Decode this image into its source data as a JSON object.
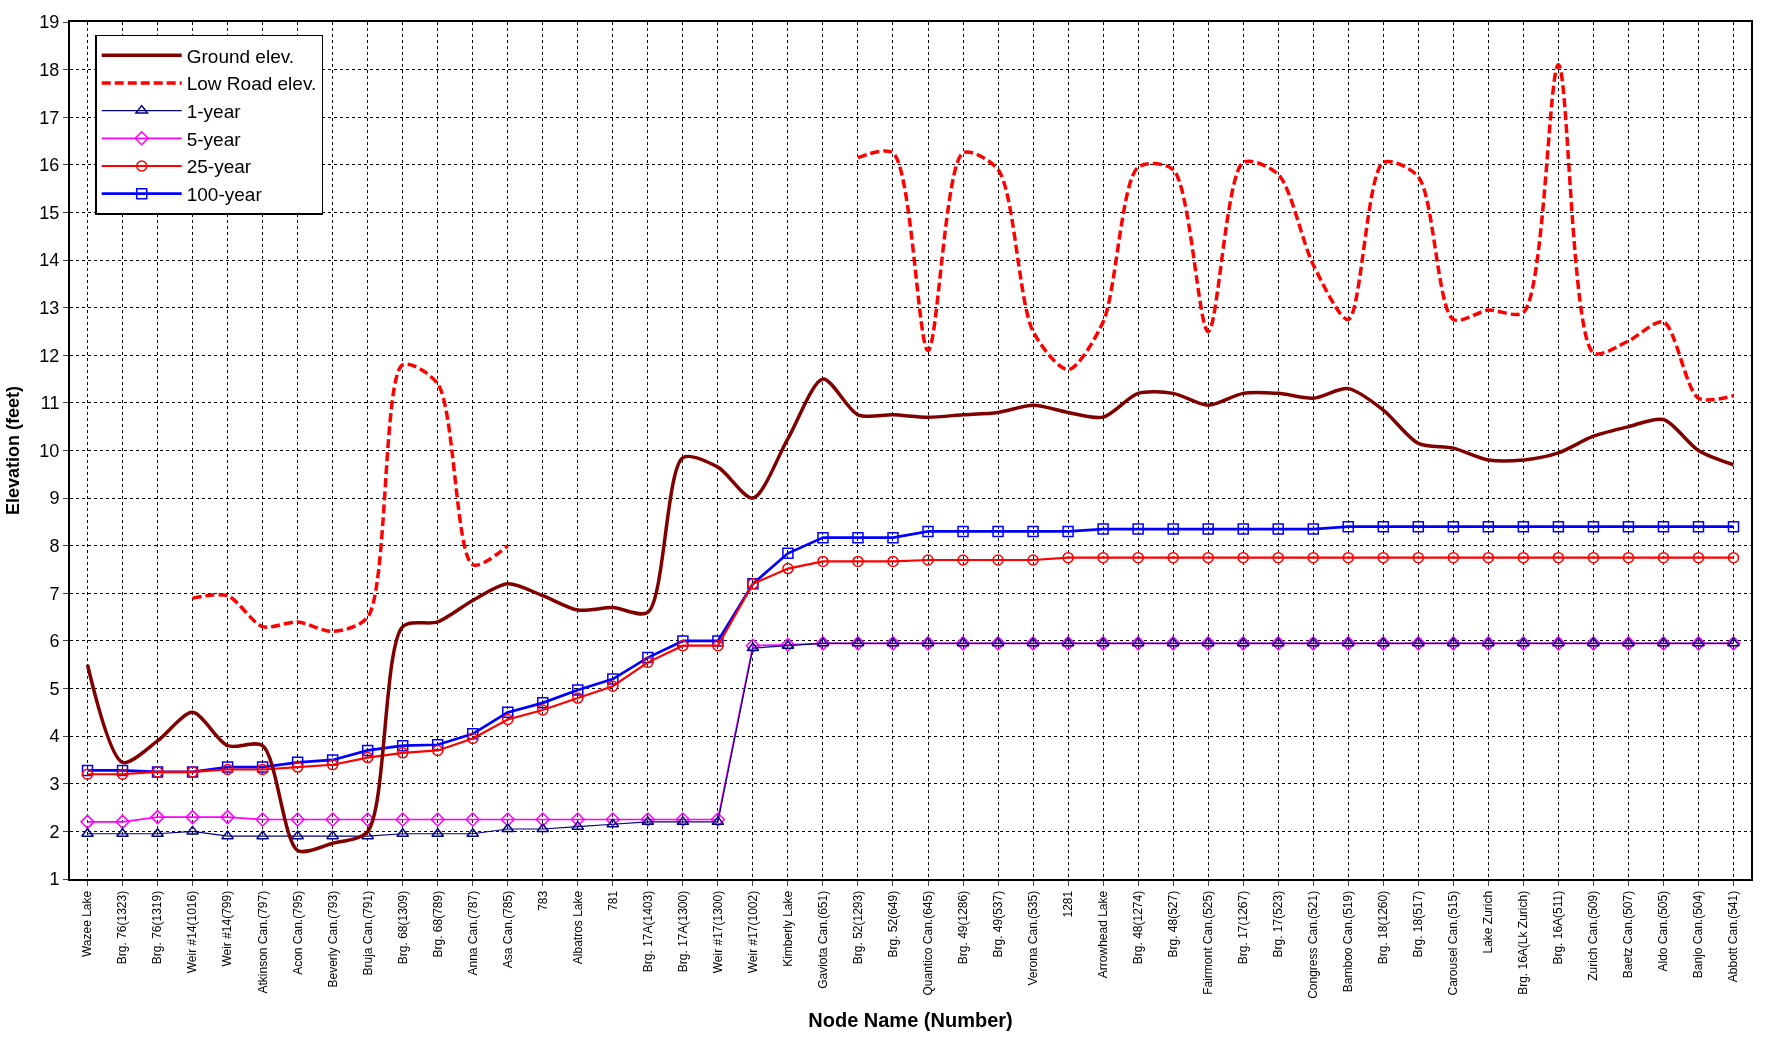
{
  "chart_data": {
    "type": "line",
    "xlabel": "Node Name (Number)",
    "ylabel": "Elevation (feet)",
    "categories": [
      "Wazee Lake",
      "Brg. 76(1323)",
      "Brg. 76(1319)",
      "Weir #14(1016)",
      "Weir #14(799)",
      "Atkinson Can.(797)",
      "Acon Can.(795)",
      "Beverly Can.(793)",
      "Bruja Can.(791)",
      "Brg. 68(1309)",
      "Brg. 68(789)",
      "Anna Can.(787)",
      "Asa Can.(785)",
      "783",
      "Albatros Lake",
      "781",
      "Brg. 17A(1403)",
      "Brg. 17A(1300)",
      "Weir #17(1300)",
      "Weir #17(1002)",
      "Kimberly Lake",
      "Gaviota Can.(651)",
      "Brg. 52(1293)",
      "Brg. 52(649)",
      "Quantico Can.(645)",
      "Brg. 49(1286)",
      "Brg. 49(537)",
      "Verona Can.(535)",
      "1281",
      "Arrowhead Lake",
      "Brg. 48(1274)",
      "Brg. 48(527)",
      "Fairmont Can.(525)",
      "Brg. 17(1267)",
      "Brg. 17(523)",
      "Congress Can.(521)",
      "Bamboo Can.(519)",
      "Brg. 18(1260)",
      "Brg. 18(517)",
      "Carousel Can.(515)",
      "Lake Zurich",
      "Brg. 16A(Lk Zurich)",
      "Brg. 16A(511)",
      "Zurich Can.(509)",
      "Baetz Can.(507)",
      "Aldo Can.(505)",
      "Banjo Can.(504)",
      "Abbott Can.(541)"
    ],
    "ylim": [
      1,
      19
    ],
    "yticks": [
      1,
      2,
      3,
      4,
      5,
      6,
      7,
      8,
      9,
      10,
      11,
      12,
      13,
      14,
      15,
      16,
      17,
      18,
      19
    ],
    "grid": true,
    "legend": "top left",
    "series": [
      {
        "name": "Ground elev.",
        "color": "#800000",
        "marker": "none",
        "line_style": "solid",
        "values": [
          5.5,
          3.45,
          3.9,
          4.5,
          3.8,
          3.8,
          1.6,
          1.75,
          2.0,
          6.3,
          6.4,
          6.85,
          7.2,
          6.95,
          6.65,
          6.7,
          6.6,
          9.85,
          9.65,
          9.0,
          10.25,
          11.5,
          10.75,
          10.75,
          10.7,
          10.75,
          10.8,
          10.95,
          10.8,
          10.7,
          11.2,
          11.2,
          10.95,
          11.2,
          11.2,
          11.1,
          11.3,
          10.85,
          10.15,
          10.05,
          9.8,
          9.8,
          9.95,
          10.3,
          10.5,
          10.65,
          10.0,
          9.7
        ]
      },
      {
        "name": "Low Road elev.",
        "color": "#ff0000",
        "marker": "none",
        "line_style": "dashed",
        "values": [
          null,
          null,
          null,
          6.9,
          6.95,
          6.3,
          6.4,
          6.2,
          6.5,
          11.8,
          11.4,
          7.6,
          8.0,
          null,
          null,
          null,
          null,
          null,
          null,
          null,
          null,
          null,
          16.15,
          16.25,
          12.1,
          16.25,
          15.9,
          12.5,
          11.7,
          12.7,
          15.95,
          15.9,
          12.5,
          16.05,
          15.8,
          13.9,
          12.75,
          16.05,
          15.75,
          12.75,
          12.95,
          12.9,
          18.1,
          12.05,
          12.3,
          12.7,
          11.1,
          11.15
        ]
      },
      {
        "name": "1-year",
        "color": "#000080",
        "marker": "triangle",
        "line_style": "solid",
        "values": [
          1.95,
          1.95,
          1.95,
          2.0,
          1.9,
          1.9,
          1.9,
          1.9,
          1.9,
          1.95,
          1.95,
          1.95,
          2.05,
          2.05,
          2.1,
          2.15,
          2.2,
          2.2,
          2.2,
          5.85,
          5.9,
          5.95,
          5.95,
          5.95,
          5.95,
          5.95,
          5.95,
          5.95,
          5.95,
          5.95,
          5.95,
          5.95,
          5.95,
          5.95,
          5.95,
          5.95,
          5.95,
          5.95,
          5.95,
          5.95,
          5.95,
          5.95,
          5.95,
          5.95,
          5.95,
          5.95,
          5.95,
          5.95
        ]
      },
      {
        "name": "5-year",
        "color": "#ff00ff",
        "marker": "diamond",
        "line_style": "solid",
        "values": [
          2.2,
          2.2,
          2.3,
          2.3,
          2.3,
          2.25,
          2.25,
          2.25,
          2.25,
          2.25,
          2.25,
          2.25,
          2.25,
          2.25,
          2.25,
          2.25,
          2.25,
          2.25,
          2.25,
          5.9,
          5.92,
          5.95,
          5.95,
          5.95,
          5.95,
          5.95,
          5.95,
          5.95,
          5.95,
          5.95,
          5.95,
          5.95,
          5.95,
          5.95,
          5.95,
          5.95,
          5.95,
          5.95,
          5.95,
          5.95,
          5.95,
          5.95,
          5.95,
          5.95,
          5.95,
          5.95,
          5.95,
          5.95
        ]
      },
      {
        "name": "25-year",
        "color": "#ff0000",
        "marker": "circle",
        "line_style": "solid",
        "values": [
          3.2,
          3.2,
          3.25,
          3.25,
          3.3,
          3.3,
          3.35,
          3.4,
          3.55,
          3.65,
          3.7,
          3.95,
          4.35,
          4.55,
          4.8,
          5.05,
          5.55,
          5.9,
          5.9,
          7.2,
          7.52,
          7.67,
          7.67,
          7.67,
          7.7,
          7.7,
          7.7,
          7.7,
          7.75,
          7.75,
          7.75,
          7.75,
          7.75,
          7.75,
          7.75,
          7.75,
          7.75,
          7.75,
          7.75,
          7.75,
          7.75,
          7.75,
          7.75,
          7.75,
          7.75,
          7.75,
          7.75,
          7.75
        ]
      },
      {
        "name": "100-year",
        "color": "#0000ff",
        "marker": "square",
        "line_style": "solid",
        "values": [
          3.28,
          3.28,
          3.25,
          3.25,
          3.35,
          3.35,
          3.45,
          3.5,
          3.7,
          3.8,
          3.82,
          4.05,
          4.5,
          4.7,
          4.97,
          5.2,
          5.65,
          6.0,
          6.0,
          7.2,
          7.84,
          8.17,
          8.17,
          8.17,
          8.3,
          8.3,
          8.3,
          8.3,
          8.3,
          8.35,
          8.35,
          8.35,
          8.35,
          8.35,
          8.35,
          8.35,
          8.4,
          8.4,
          8.4,
          8.4,
          8.4,
          8.4,
          8.4,
          8.4,
          8.4,
          8.4,
          8.4,
          8.4
        ]
      }
    ]
  }
}
